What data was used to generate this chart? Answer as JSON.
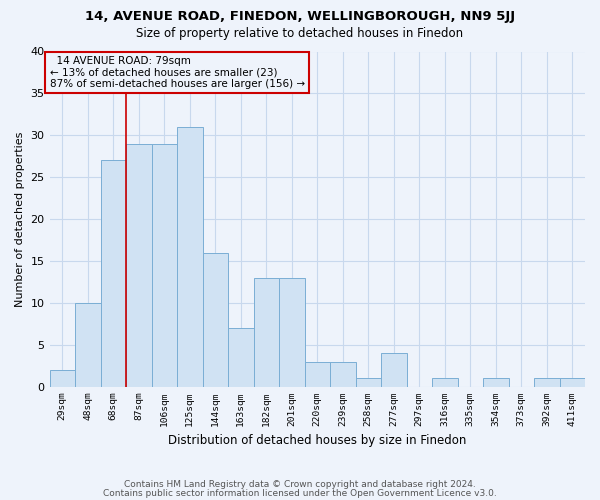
{
  "title1": "14, AVENUE ROAD, FINEDON, WELLINGBOROUGH, NN9 5JJ",
  "title2": "Size of property relative to detached houses in Finedon",
  "xlabel": "Distribution of detached houses by size in Finedon",
  "ylabel": "Number of detached properties",
  "categories": [
    "29sqm",
    "48sqm",
    "68sqm",
    "87sqm",
    "106sqm",
    "125sqm",
    "144sqm",
    "163sqm",
    "182sqm",
    "201sqm",
    "220sqm",
    "239sqm",
    "258sqm",
    "277sqm",
    "297sqm",
    "316sqm",
    "335sqm",
    "354sqm",
    "373sqm",
    "392sqm",
    "411sqm"
  ],
  "values": [
    2,
    10,
    27,
    29,
    29,
    31,
    16,
    7,
    13,
    13,
    3,
    3,
    1,
    4,
    0,
    1,
    0,
    1,
    0,
    1,
    1
  ],
  "bar_color": "#d0e2f3",
  "bar_edge_color": "#7aaed4",
  "property_label": "14 AVENUE ROAD: 79sqm",
  "pct_smaller": "13% of detached houses are smaller (23)",
  "pct_larger": "87% of semi-detached houses are larger (156)",
  "vline_index": 3,
  "ylim": [
    0,
    40
  ],
  "yticks": [
    0,
    5,
    10,
    15,
    20,
    25,
    30,
    35,
    40
  ],
  "footer1": "Contains HM Land Registry data © Crown copyright and database right 2024.",
  "footer2": "Contains public sector information licensed under the Open Government Licence v3.0.",
  "bg_color": "#eef3fb",
  "grid_color": "#c8d8ed",
  "annotation_box_color": "#cc0000",
  "title1_fontsize": 9.5,
  "title2_fontsize": 8.5
}
